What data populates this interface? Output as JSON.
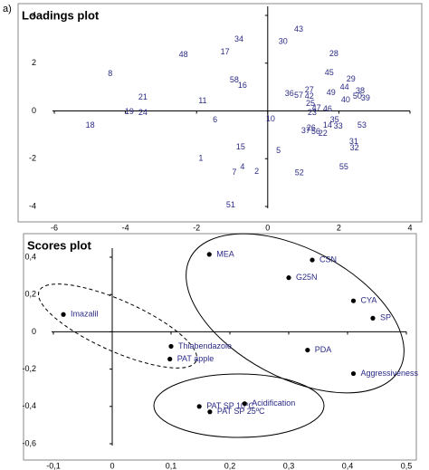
{
  "figure_label": "a)",
  "chart_data": [
    {
      "type": "scatter",
      "title": "Loadings plot",
      "marker": "none",
      "color": "#2a2a86",
      "xlim": [
        -6,
        4
      ],
      "ylim": [
        -4,
        4
      ],
      "xticks": [
        -6,
        -4,
        -2,
        0,
        2,
        4
      ],
      "yticks": [
        -4,
        -2,
        0,
        2,
        4
      ],
      "labels": [
        "43",
        "34",
        "30",
        "48",
        "17",
        "28",
        "8",
        "45",
        "58",
        "16",
        "29",
        "21",
        "11",
        "36",
        "57",
        "27",
        "42",
        "49",
        "44",
        "38",
        "50",
        "39",
        "40",
        "25",
        "19",
        "24",
        "18",
        "6",
        "10",
        "47",
        "46",
        "23",
        "35",
        "14",
        "33",
        "53",
        "37",
        "26",
        "56",
        "22",
        "31",
        "32",
        "15",
        "5",
        "1",
        "4",
        "7",
        "2",
        "55",
        "52",
        "51"
      ],
      "x": [
        0.87,
        -0.81,
        0.43,
        -2.37,
        -1.2,
        1.86,
        -4.43,
        1.73,
        -0.94,
        -0.71,
        2.34,
        -3.51,
        -1.83,
        0.61,
        0.87,
        1.17,
        1.17,
        1.78,
        2.16,
        2.6,
        2.52,
        2.75,
        2.19,
        1.2,
        -3.89,
        -3.51,
        -4.99,
        -1.48,
        0.08,
        1.37,
        1.68,
        1.25,
        1.88,
        1.68,
        1.98,
        2.65,
        1.07,
        1.22,
        1.35,
        1.55,
        2.42,
        2.44,
        -0.76,
        0.3,
        -1.88,
        -0.71,
        -0.94,
        -0.31,
        2.14,
        0.89,
        -1.04
      ],
      "y": [
        3.4,
        3.0,
        2.9,
        2.35,
        2.46,
        2.39,
        1.55,
        1.59,
        1.29,
        1.06,
        1.33,
        0.57,
        0.42,
        0.72,
        0.64,
        0.87,
        0.61,
        0.76,
        0.98,
        0.83,
        0.61,
        0.53,
        0.45,
        0.3,
        -0.04,
        -0.08,
        -0.61,
        -0.38,
        -0.34,
        0.11,
        0.08,
        -0.08,
        -0.38,
        -0.61,
        -0.64,
        -0.61,
        -0.83,
        -0.72,
        -0.87,
        -0.95,
        -1.29,
        -1.55,
        -1.52,
        -1.67,
        -2.0,
        -2.35,
        -2.58,
        -2.54,
        -2.35,
        -2.61,
        -3.94
      ]
    },
    {
      "type": "scatter",
      "title": "Scores plot",
      "marker": "circle",
      "color": "#2a2a86",
      "xlim": [
        -0.1,
        0.5
      ],
      "ylim": [
        -0.6,
        0.4
      ],
      "xticks": [
        {
          "value": -0.1,
          "label": "-0,1"
        },
        0,
        {
          "value": 0.1,
          "label": "0,1"
        },
        {
          "value": 0.2,
          "label": "0,2"
        },
        {
          "value": 0.3,
          "label": "0,3"
        },
        {
          "value": 0.4,
          "label": "0,4"
        },
        {
          "value": 0.5,
          "label": "0,5"
        }
      ],
      "yticks": [
        {
          "value": 0.4,
          "label": "0,4"
        },
        {
          "value": 0.2,
          "label": "0,2"
        },
        0,
        {
          "value": -0.2,
          "label": "-0,2"
        },
        {
          "value": -0.4,
          "label": "-0,4"
        },
        {
          "value": -0.6,
          "label": "-0,6"
        }
      ],
      "labels": [
        "MEA",
        "CSN",
        "G25N",
        "CYA",
        "SP",
        "Imazalil",
        "Thiabendazole",
        "PAT apple",
        "PDA",
        "Aggressiveness",
        "PAT SP 10ºC",
        "PAT SP 25ºC",
        "Acidification"
      ],
      "x": [
        0.165,
        0.34,
        0.3,
        0.41,
        0.443,
        -0.083,
        0.1,
        0.098,
        0.332,
        0.41,
        0.148,
        0.166,
        0.225
      ],
      "y": [
        0.415,
        0.385,
        0.29,
        0.166,
        0.073,
        0.093,
        -0.078,
        -0.146,
        -0.098,
        -0.224,
        -0.4,
        -0.429,
        -0.385
      ]
    }
  ]
}
